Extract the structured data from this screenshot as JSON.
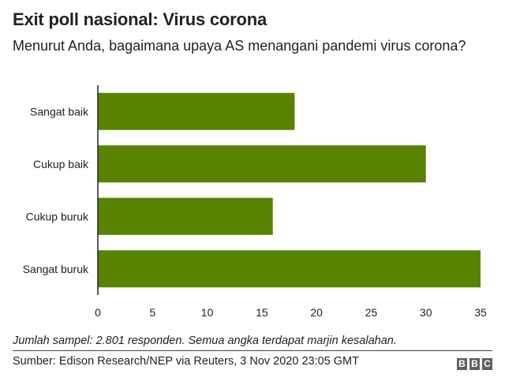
{
  "chart_data": {
    "type": "bar",
    "orientation": "horizontal",
    "title": "Exit poll nasional: Virus corona",
    "subtitle": "Menurut Anda, bagaimana upaya AS menangani pandemi virus corona?",
    "categories": [
      "Sangat baik",
      "Cukup baik",
      "Cukup buruk",
      "Sangat buruk"
    ],
    "values": [
      18,
      30,
      16,
      35
    ],
    "xlim": [
      0,
      35
    ],
    "xticks": [
      0,
      5,
      10,
      15,
      20,
      25,
      30,
      35
    ],
    "xlabel": "",
    "ylabel": "",
    "grid": false,
    "bar_color": "#588300",
    "axis_color": "#222222"
  },
  "footer": {
    "note": "Jumlah sampel: 2.801 responden. Semua angka terdapat marjin kesalahan.",
    "source": "Sumber: Edison Research/NEP via Reuters, 3 Nov 2020 23:05 GMT",
    "logo": [
      "B",
      "B",
      "C"
    ]
  }
}
